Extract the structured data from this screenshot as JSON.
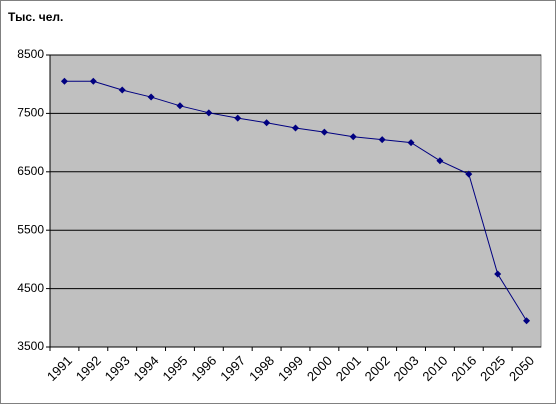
{
  "chart_data": {
    "type": "line",
    "title": "Тыс. чел.",
    "categories": [
      "1991",
      "1992",
      "1993",
      "1994",
      "1995",
      "1996",
      "1997",
      "1998",
      "1999",
      "2000",
      "2001",
      "2002",
      "2003",
      "2010",
      "2016",
      "2025",
      "2050"
    ],
    "values": [
      8050,
      8050,
      7900,
      7780,
      7630,
      7510,
      7420,
      7340,
      7250,
      7180,
      7100,
      7050,
      7000,
      6690,
      6460,
      4750,
      3950
    ],
    "color": "#000080",
    "ylim": [
      3500,
      8500
    ],
    "yticks": [
      3500,
      4500,
      5500,
      6500,
      7500,
      8500
    ],
    "grid": true
  }
}
